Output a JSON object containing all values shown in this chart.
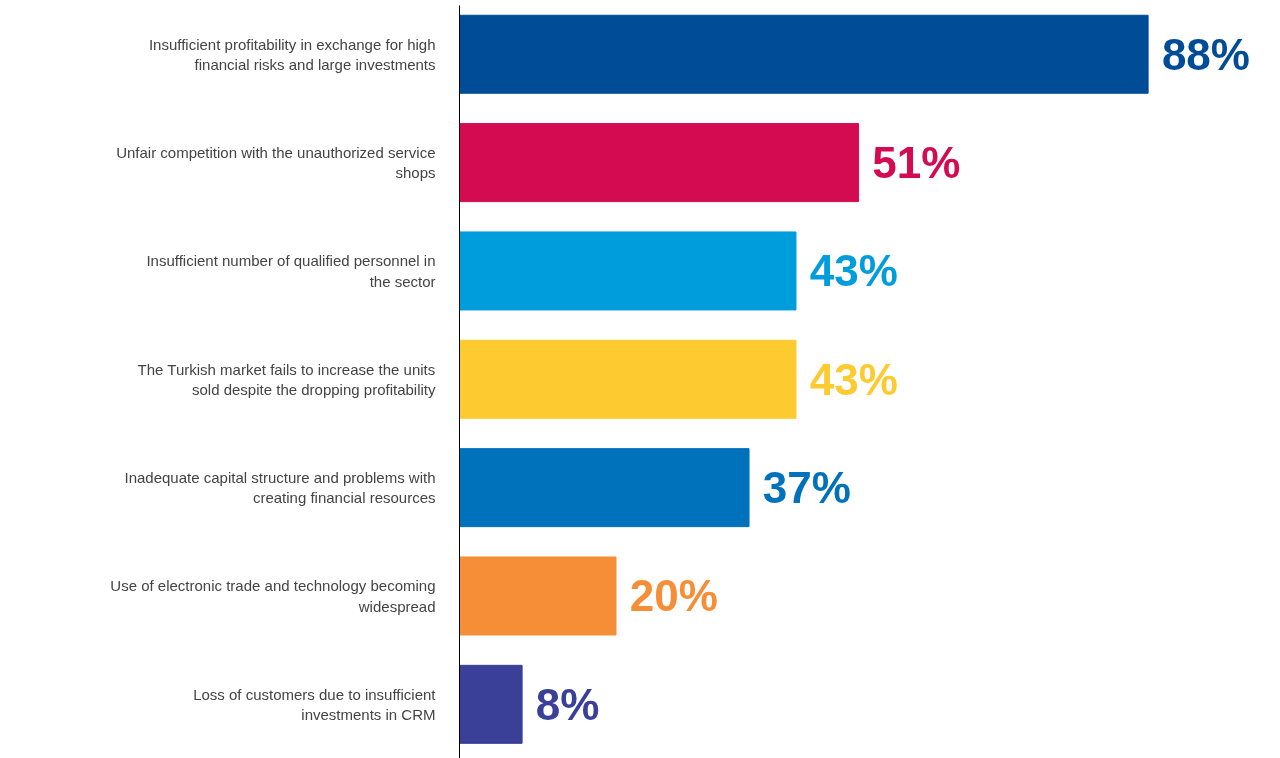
{
  "chart_data": {
    "type": "bar",
    "orientation": "horizontal",
    "categories": [
      "Insufficient profitability in exchange for high financial risks and large investments",
      "Unfair competition with the unauthorized service shops",
      "Insufficient number of qualified personnel in the sector",
      "The Turkish market fails to increase the units sold despite the dropping profitability",
      "Inadequate capital structure and problems with creating financial resources",
      "Use of electronic trade and technology becoming widespread",
      "Loss of customers due to insufficient investments in CRM"
    ],
    "values": [
      88,
      51,
      43,
      43,
      37,
      20,
      8
    ],
    "colors": [
      "#004c97",
      "#d50b52",
      "#009ddc",
      "#fdca30",
      "#0071bb",
      "#f68e37",
      "#3a3f98"
    ],
    "value_labels": [
      "88%",
      "51%",
      "43%",
      "43%",
      "37%",
      "20%",
      "8%"
    ]
  }
}
